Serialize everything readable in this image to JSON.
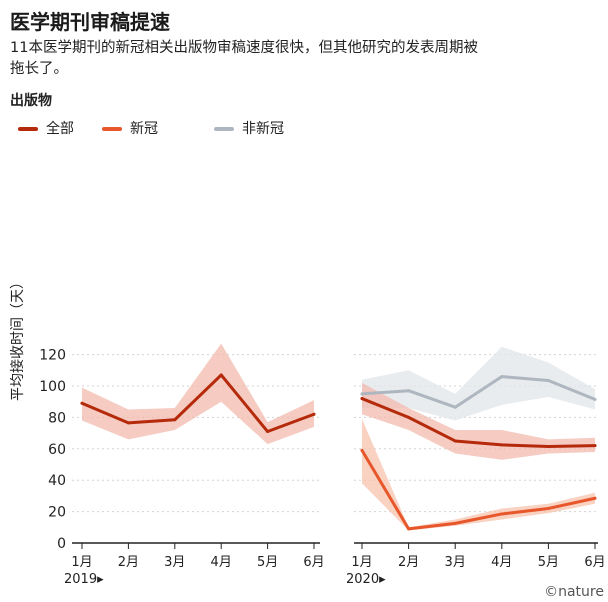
{
  "title": "医学期刊审稿提速",
  "subtitle": "11本医学期刊的新冠相关出版物审稿速度很快，但其他研究的发表周期被拖长了。",
  "section_label": "出版物",
  "legend": [
    {
      "key": "all",
      "label": "全部",
      "color": "#b52a0a"
    },
    {
      "key": "covid",
      "label": "新冠",
      "color": "#e8572b"
    },
    {
      "key": "noncovid",
      "label": "非新冠",
      "color": "#aeb6bf"
    }
  ],
  "credit": "©nature",
  "chart_data": {
    "type": "line",
    "ylabel": "平均接收时间（天）",
    "ylim": [
      0,
      125
    ],
    "yticks": [
      0,
      20,
      40,
      60,
      80,
      100,
      120
    ],
    "y_tick_labels": [
      "0",
      "20",
      "40",
      "60",
      "80",
      "100",
      "120"
    ],
    "panels": [
      {
        "year_label": "2019▸",
        "categories": [
          "1月",
          "2月",
          "3月",
          "4月",
          "5月",
          "6月"
        ],
        "series": [
          {
            "name": "全部",
            "key": "all",
            "values": [
              89,
              76.5,
              78.5,
              107,
              71,
              82
            ],
            "band_low": [
              78,
              66,
              72,
              90,
              63,
              74
            ],
            "band_high": [
              99,
              85,
              86,
              127,
              77,
              91
            ]
          }
        ]
      },
      {
        "year_label": "2020▸",
        "categories": [
          "1月",
          "2月",
          "3月",
          "4月",
          "5月",
          "6月"
        ],
        "series": [
          {
            "name": "非新冠",
            "key": "noncovid",
            "values": [
              95,
              97,
              86.5,
              106,
              103.5,
              91.5
            ],
            "band_low": [
              86,
              86,
              78,
              88,
              93,
              85
            ],
            "band_high": [
              104,
              110,
              95,
              125,
              115,
              98
            ]
          },
          {
            "name": "全部",
            "key": "all",
            "values": [
              92,
              80,
              65,
              62.5,
              61.5,
              62
            ],
            "band_low": [
              82,
              72,
              57,
              53,
              57,
              58
            ],
            "band_high": [
              102,
              86,
              72,
              72,
              66,
              67
            ]
          },
          {
            "name": "新冠",
            "key": "covid",
            "values": [
              59,
              9,
              12.5,
              18.5,
              22,
              28.5
            ],
            "band_low": [
              38,
              8,
              11,
              15,
              19,
              25
            ],
            "band_high": [
              79,
              10,
              15,
              22,
              25,
              32
            ]
          }
        ]
      }
    ]
  }
}
